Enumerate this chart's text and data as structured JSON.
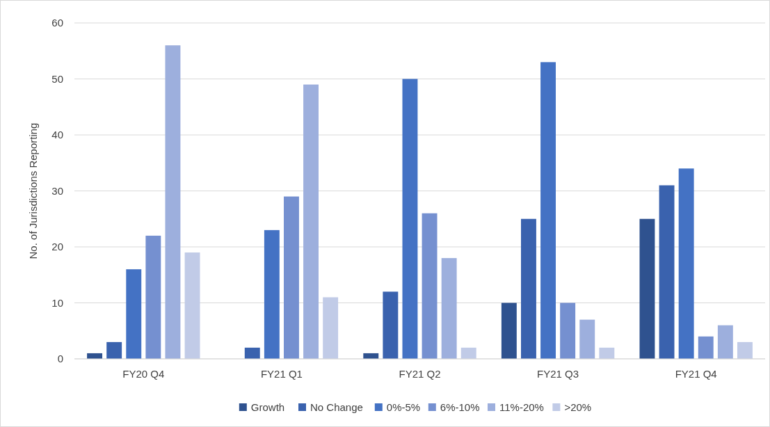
{
  "chart_data": {
    "type": "bar",
    "ylabel": "No. of Jurisdictions Reporting",
    "categories": [
      "FY20 Q4",
      "FY21 Q1",
      "FY21 Q2",
      "FY21 Q3",
      "FY21 Q4"
    ],
    "series": [
      {
        "name": "Growth",
        "color": "#2f528f",
        "values": [
          1,
          0,
          1,
          10,
          25
        ]
      },
      {
        "name": "No Change",
        "color": "#3a62ae",
        "values": [
          3,
          2,
          12,
          25,
          31
        ]
      },
      {
        "name": "0%-5%",
        "color": "#4472c4",
        "values": [
          16,
          23,
          50,
          53,
          34
        ]
      },
      {
        "name": "6%-10%",
        "color": "#7590d0",
        "values": [
          22,
          29,
          26,
          10,
          4
        ]
      },
      {
        "name": "11%-20%",
        "color": "#9dafdd",
        "values": [
          56,
          49,
          18,
          7,
          6
        ]
      },
      {
        "name": ">20%",
        "color": "#c1cbe7",
        "values": [
          19,
          11,
          2,
          2,
          3
        ]
      }
    ],
    "ylim": [
      0,
      60
    ],
    "yticks": [
      0,
      10,
      20,
      30,
      40,
      50,
      60
    ],
    "grid": "y",
    "legend": "bottom"
  }
}
